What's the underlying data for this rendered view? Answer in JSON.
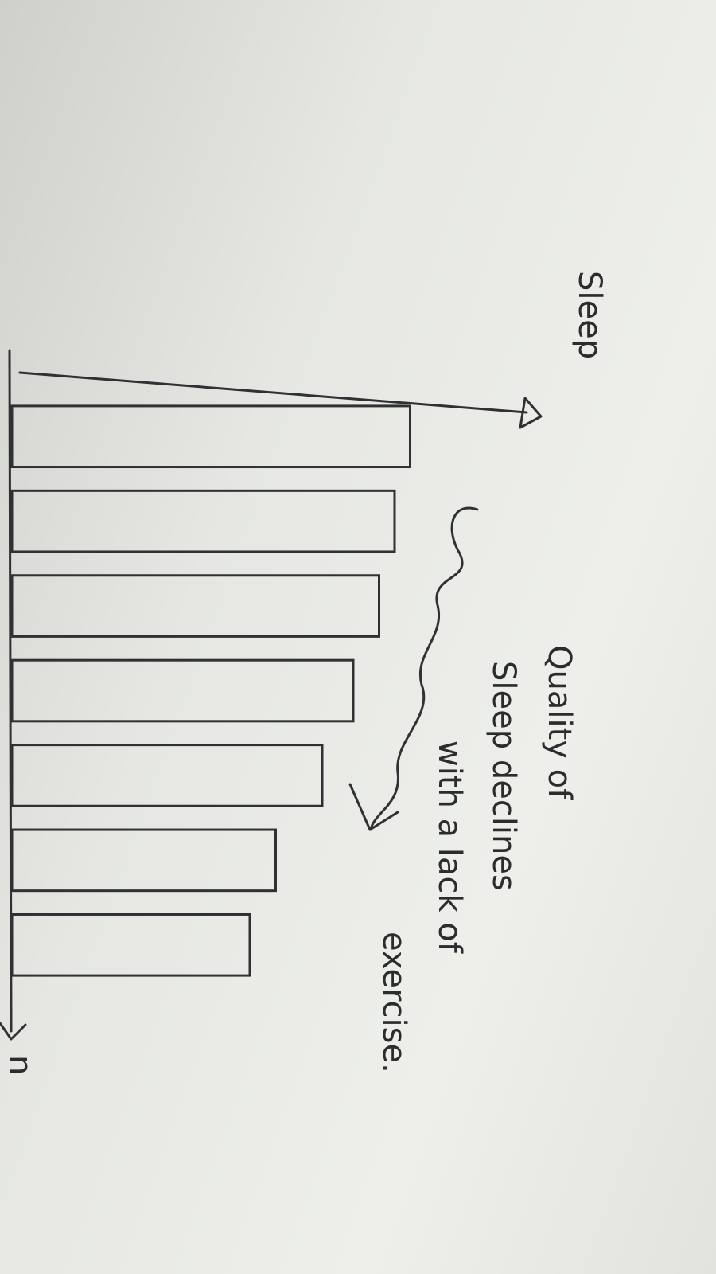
{
  "chart_data": {
    "type": "bar",
    "orientation": "horizontal",
    "x_label": "Sleep",
    "y_label": "n",
    "annotation": [
      "Quality of",
      "Sleep declines",
      "with a lack of",
      "exercise."
    ],
    "categories": [
      null,
      null,
      null,
      null,
      null,
      null,
      null
    ],
    "values": [
      77,
      74,
      71,
      66,
      60,
      51,
      46
    ],
    "xlim": [
      0,
      100
    ],
    "color": "#2f3133"
  }
}
